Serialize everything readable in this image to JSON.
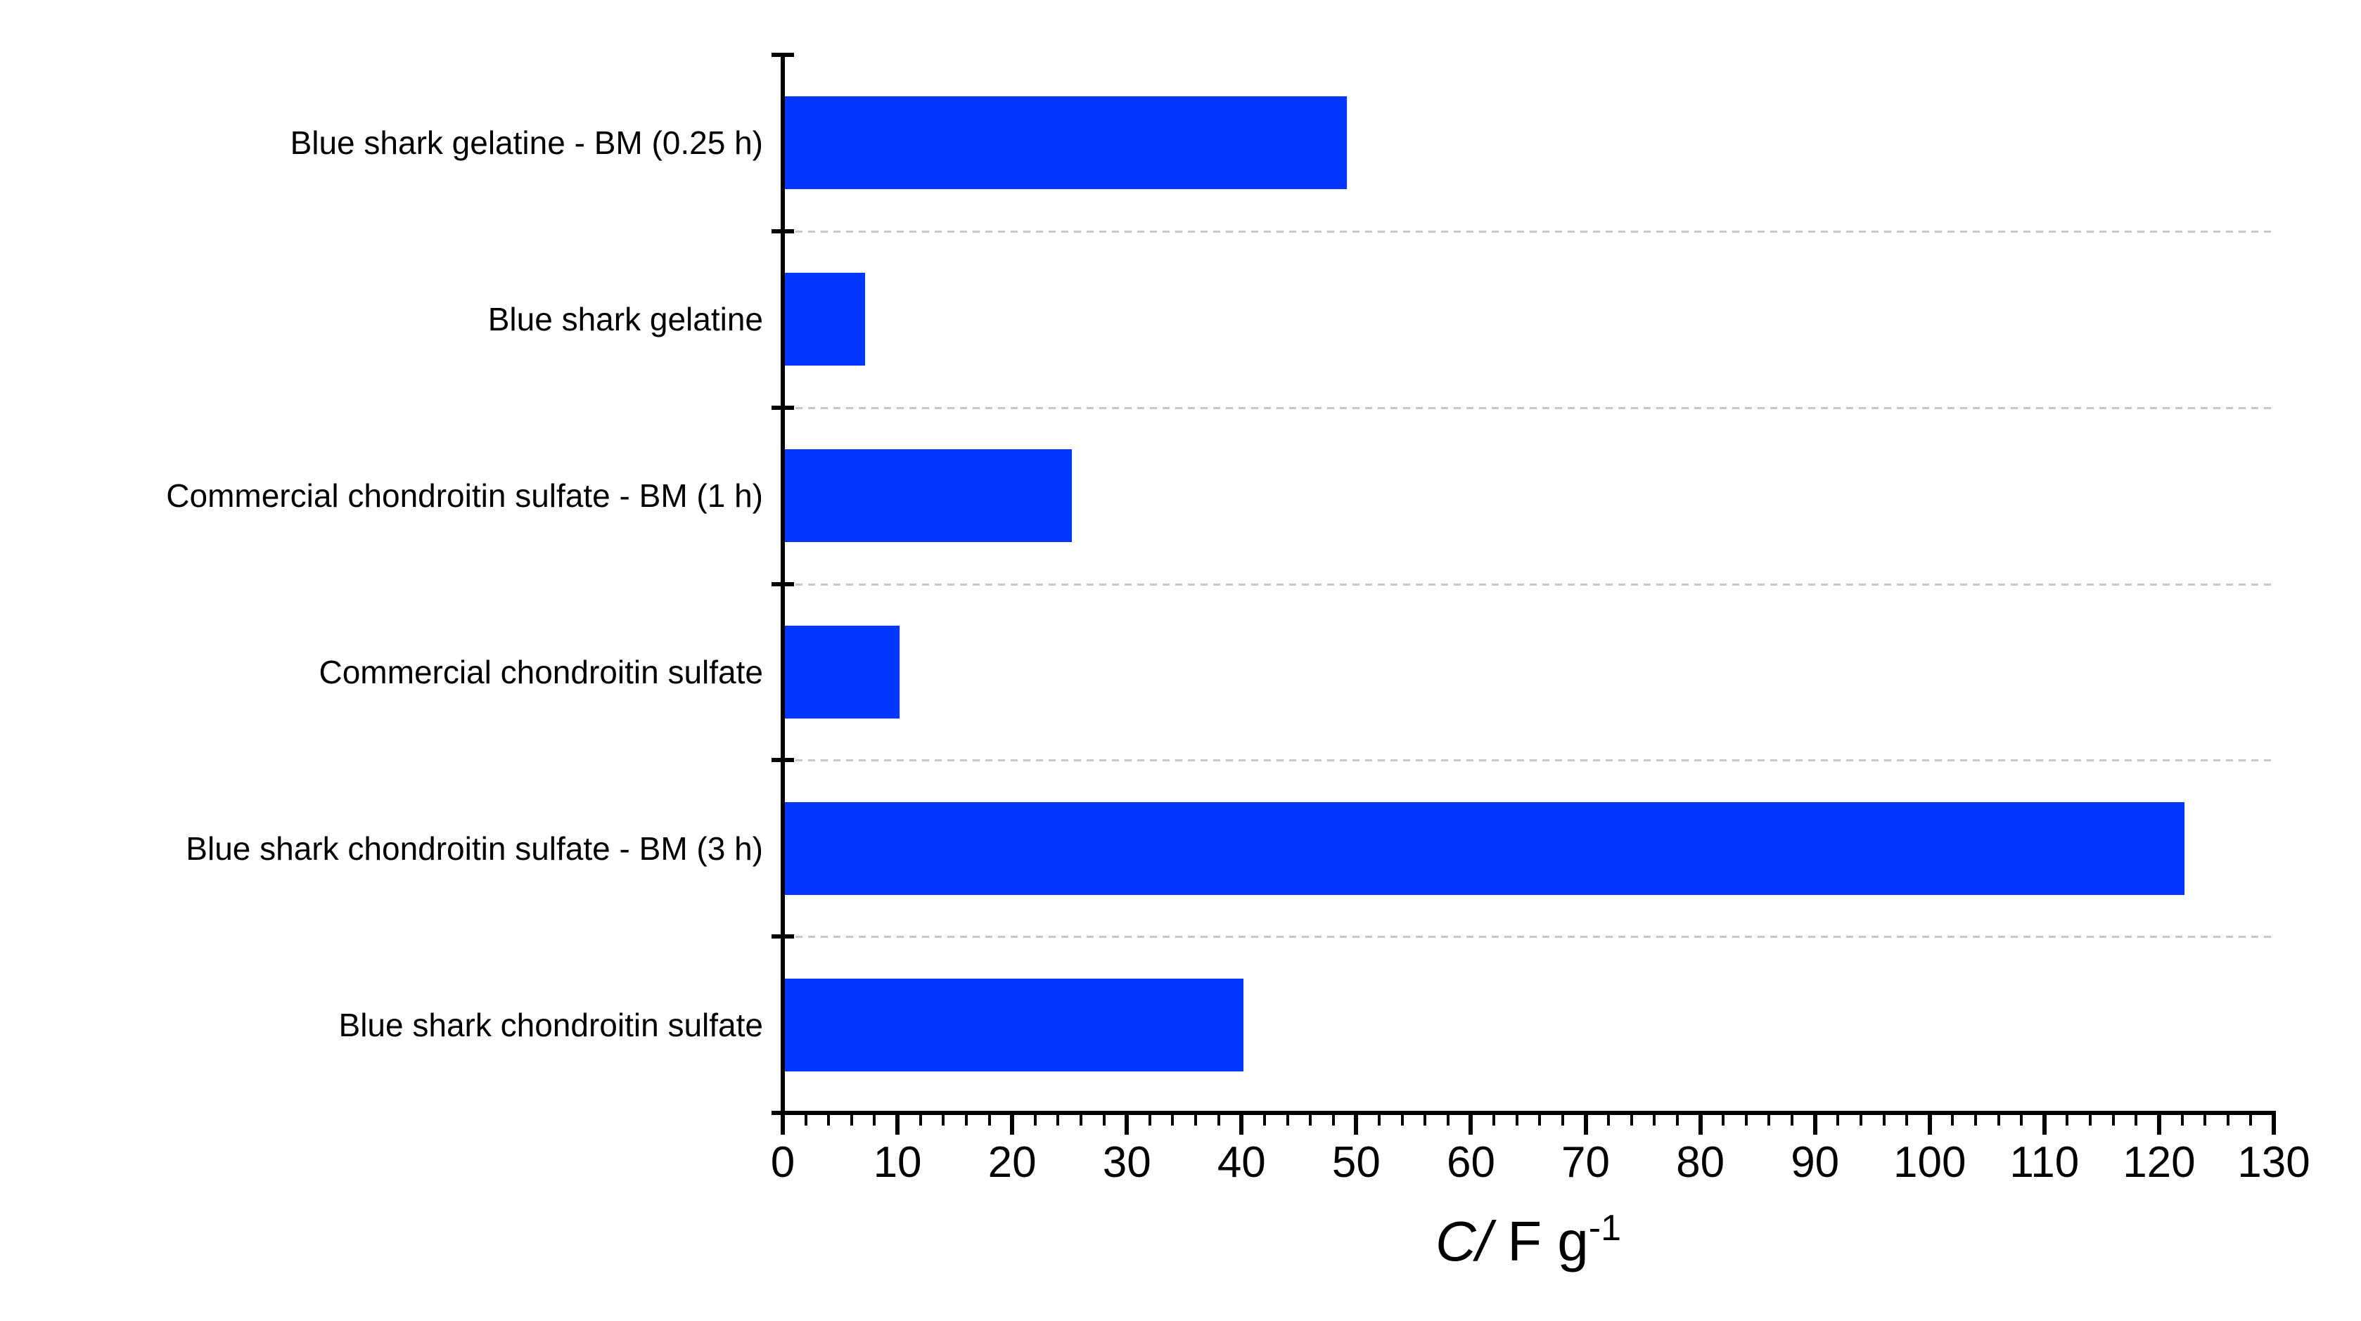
{
  "chart_data": {
    "type": "bar",
    "orientation": "horizontal",
    "title": "",
    "categories": [
      "Blue shark gelatine - BM (0.25 h)",
      "Blue shark gelatine",
      "Commercial chondroitin sulfate - BM (1 h)",
      "Commercial chondroitin sulfate",
      "Blue shark chondroitin sulfate - BM (3 h)",
      "Blue shark chondroitin sulfate"
    ],
    "values": [
      49,
      7,
      25,
      10,
      122,
      40
    ],
    "xlabel": "C/ F g⁻¹",
    "xlabel_quantity": "C/",
    "xlabel_unit": " F g",
    "xlabel_exponent": "-1",
    "xlim": [
      0,
      130
    ],
    "x_major_ticks": [
      0,
      10,
      20,
      30,
      40,
      50,
      60,
      70,
      80,
      90,
      100,
      110,
      120,
      130
    ],
    "x_minor_tick_step": 2,
    "grid": "dashed horizontal separators between categories",
    "legend": "none",
    "bar_color": "#0336fe",
    "axis_color": "#000000",
    "gridline_color": "#c8c8c8",
    "text_color": "#000000",
    "background_color": "#ffffff"
  }
}
